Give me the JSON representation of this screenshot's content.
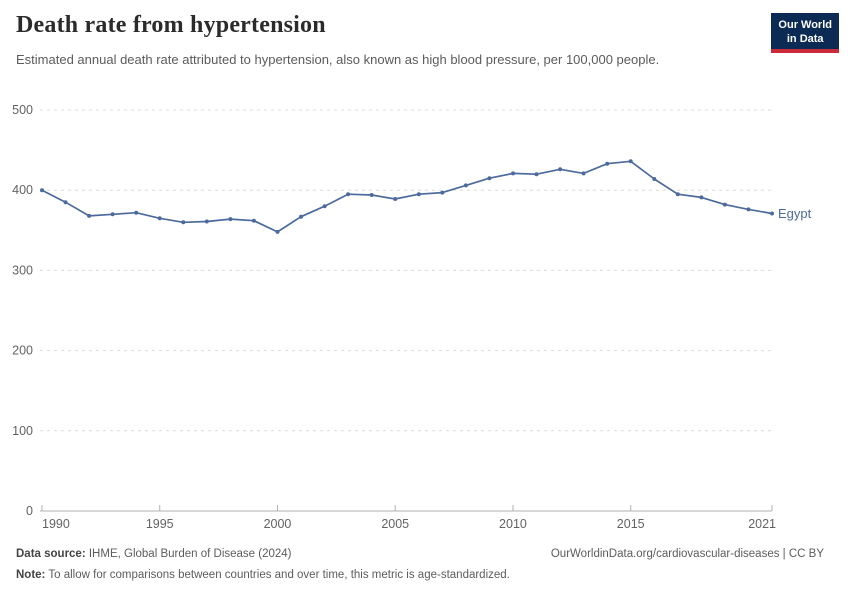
{
  "header": {
    "title": "Death rate from hypertension",
    "subtitle": "Estimated annual death rate attributed to hypertension, also known as high blood pressure, per 100,000 people."
  },
  "logo": {
    "line1": "Our World",
    "line2": "in Data",
    "bg_color": "#0b2a54",
    "accent_color": "#cb2a3a"
  },
  "chart_data": {
    "type": "line",
    "title": "Death rate from hypertension",
    "xlabel": "",
    "ylabel": "",
    "x": [
      1990,
      1991,
      1992,
      1993,
      1994,
      1995,
      1996,
      1997,
      1998,
      1999,
      2000,
      2001,
      2002,
      2003,
      2004,
      2005,
      2006,
      2007,
      2008,
      2009,
      2010,
      2011,
      2012,
      2013,
      2014,
      2015,
      2016,
      2017,
      2018,
      2019,
      2020,
      2021
    ],
    "series": [
      {
        "name": "Egypt",
        "color": "#4c6a9c",
        "values": [
          400,
          385,
          368,
          370,
          372,
          365,
          360,
          361,
          364,
          362,
          348,
          367,
          380,
          395,
          394,
          389,
          395,
          397,
          406,
          415,
          421,
          420,
          426,
          421,
          433,
          436,
          414,
          395,
          391,
          382,
          376,
          371
        ]
      }
    ],
    "ylim": [
      0,
      500
    ],
    "yticks": [
      0,
      100,
      200,
      300,
      400,
      500
    ],
    "xticks": [
      1990,
      1995,
      2000,
      2005,
      2010,
      2015,
      2021
    ],
    "grid": "horizontal-dashed",
    "legend": "end-of-line-label",
    "colors": {
      "gridline": "#dcdcdc",
      "axis_line": "#b0b0b0",
      "tick_text": "#636363"
    }
  },
  "footer": {
    "datasource_label": "Data source:",
    "datasource_value": " IHME, Global Burden of Disease (2024)",
    "url_text": "OurWorldinData.org/cardiovascular-diseases | CC BY",
    "note_label": "Note:",
    "note_value": " To allow for comparisons between countries and over time, this metric is age-standardized."
  }
}
